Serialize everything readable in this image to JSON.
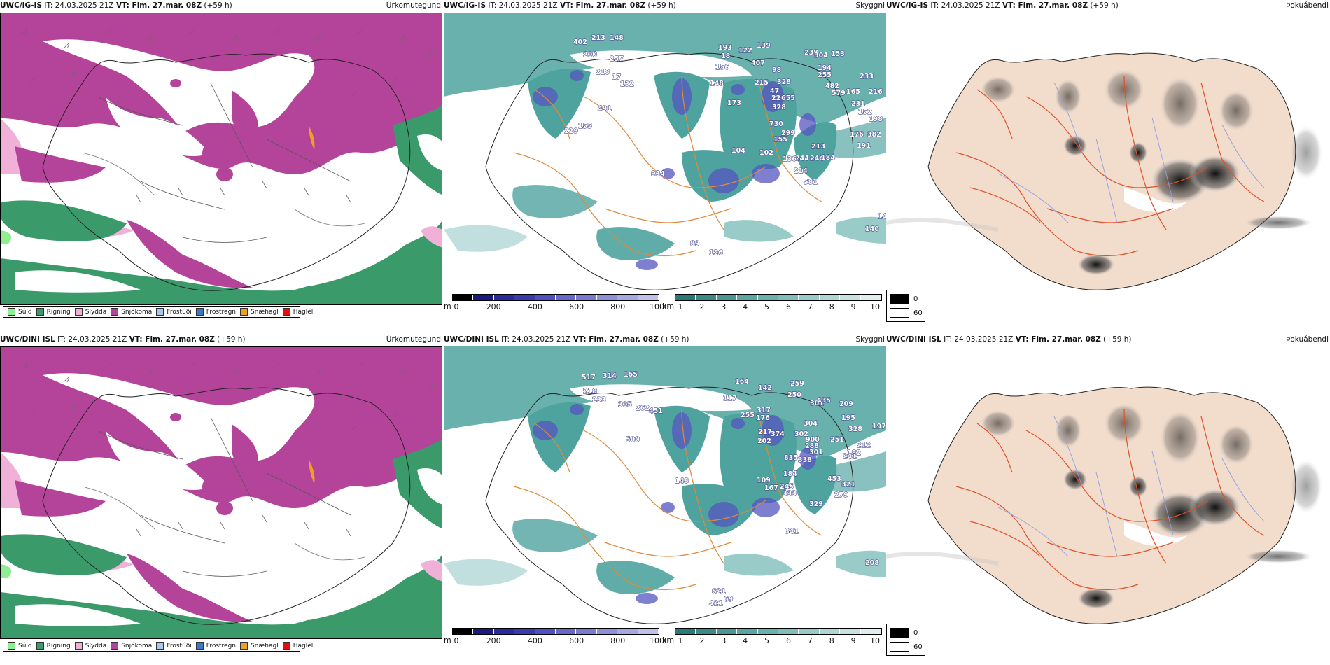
{
  "rows": [
    {
      "model": "UWC/IG-IS",
      "it": "IT: 24.03.2025 21Z",
      "vt": "VT: Fim. 27.mar. 08Z",
      "lead": "(+59 h)",
      "ceiling_labels": [
        "402",
        "213",
        "148",
        "200",
        "257",
        "218",
        "17",
        "491",
        "132",
        "155",
        "229",
        "193",
        "18",
        "156",
        "148",
        "173",
        "122",
        "407",
        "139",
        "98",
        "47",
        "226",
        "655",
        "328",
        "215",
        "328",
        "238",
        "304",
        "153",
        "194",
        "255",
        "482",
        "579",
        "165",
        "231",
        "233",
        "216",
        "152",
        "198",
        "730",
        "299",
        "155",
        "213",
        "102",
        "244",
        "244",
        "184",
        "176",
        "191",
        "382",
        "136",
        "214",
        "581",
        "104",
        "934",
        "89",
        "126",
        "140"
      ],
      "bottom_right_label": "140"
    },
    {
      "model": "UWC/DINI ISL",
      "it": "IT: 24.03.2025 21Z",
      "vt": "VT: Fim. 27.mar. 08Z",
      "lead": "(+59 h)",
      "ceiling_labels": [
        "517",
        "314",
        "165",
        "218",
        "233",
        "305",
        "262",
        "451",
        "500",
        "164",
        "142",
        "259",
        "250",
        "117",
        "317",
        "176",
        "255",
        "217",
        "374",
        "202",
        "302",
        "288",
        "301",
        "835",
        "338",
        "184",
        "109",
        "167",
        "245",
        "333",
        "304",
        "900",
        "251",
        "195",
        "328",
        "197",
        "212",
        "182",
        "241",
        "453",
        "321",
        "279",
        "329",
        "841",
        "621",
        "69",
        "421",
        "301",
        "435",
        "209",
        "148"
      ],
      "bottom_right_label": "208"
    }
  ],
  "panels": {
    "precip_title": "Úrkomutegund",
    "ceiling_title": "Skyggni",
    "fog_title": "Þokuábendi"
  },
  "precip_legend": [
    {
      "label": "Súld",
      "color": "#90ee90"
    },
    {
      "label": "Rigning",
      "color": "#3a9a6a"
    },
    {
      "label": "Slydda",
      "color": "#f0b0d8"
    },
    {
      "label": "Snjókoma",
      "color": "#b4449a"
    },
    {
      "label": "Frostúði",
      "color": "#a8c8f0"
    },
    {
      "label": "Frostregn",
      "color": "#3a78c8"
    },
    {
      "label": "Snæhagl",
      "color": "#f0a020"
    },
    {
      "label": "Haglél",
      "color": "#e01010"
    }
  ],
  "ceiling_colorbar": {
    "unit": "m",
    "ticks": [
      "0",
      "200",
      "400",
      "600",
      "800",
      "1000"
    ],
    "colors": [
      "#000000",
      "#1a1a80",
      "#2a2aa0",
      "#3a3ab0",
      "#5050c0",
      "#6868c8",
      "#7a7ad0",
      "#9090d8",
      "#a8a8e0",
      "#c0c0ea"
    ]
  },
  "visibility_colorbar": {
    "unit": "km",
    "ticks": [
      "1",
      "2",
      "3",
      "4",
      "5",
      "6",
      "7",
      "8",
      "9",
      "10"
    ],
    "colors": [
      "#2a7a78",
      "#3a8a88",
      "#4a9896",
      "#5aa6a4",
      "#6ab2b0",
      "#80bebc",
      "#98cac8",
      "#b0d6d4",
      "#c8e2e0",
      "#e0eeee"
    ]
  },
  "fog_legend": {
    "high": "0",
    "low": "60",
    "high_color": "#000000",
    "low_color": "#ffffff"
  },
  "colors": {
    "snow": "#b4449a",
    "rain": "#3a9a6a",
    "sleet": "#f0b0d8",
    "drizzle": "#90ee90",
    "teal": "#4fa39f",
    "orange_roads": "#e08a3a",
    "land_beige": "#f2dccb",
    "fog_red": "#e0502a",
    "river_blue": "#8f9ee8"
  }
}
